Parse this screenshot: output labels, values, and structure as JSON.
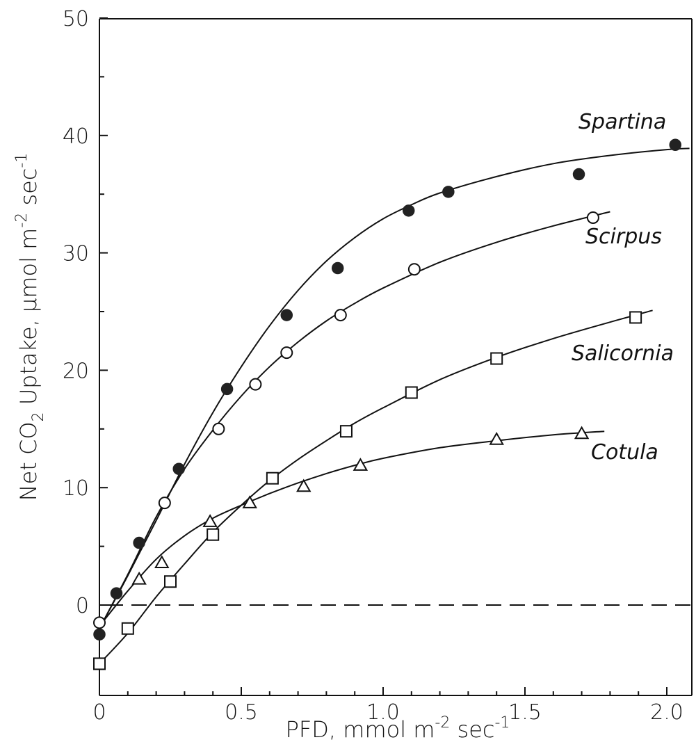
{
  "chart_data": {
    "type": "scatter",
    "xlabel": "PFD, mmol m",
    "xlabel_sup1": "-2",
    "xlabel_mid": " sec",
    "xlabel_sup2": "-1",
    "ylabel": "Net CO",
    "ylabel_sub": "2",
    "ylabel_mid": " Uptake, μmol m",
    "ylabel_sup1": "-2",
    "ylabel_mid2": " sec",
    "ylabel_sup2": "-1",
    "xlim": [
      0,
      2.1
    ],
    "ylim": [
      -7,
      50
    ],
    "x_ticks": [
      0,
      0.5,
      1.0,
      1.5,
      2.0
    ],
    "x_tick_labels": [
      "0",
      "0.5",
      "1.0",
      "1.5",
      "2.0"
    ],
    "y_ticks": [
      0,
      10,
      20,
      30,
      40,
      50
    ],
    "y_tick_labels": [
      "0",
      "10",
      "20",
      "30",
      "40",
      "50"
    ],
    "reference_line": {
      "y": 0,
      "style": "dashed"
    },
    "series": [
      {
        "name": "Spartina",
        "marker": "filled-circle",
        "points": [
          [
            0.0,
            -2.5
          ],
          [
            0.06,
            1.0
          ],
          [
            0.14,
            5.3
          ],
          [
            0.28,
            11.6
          ],
          [
            0.45,
            18.4
          ],
          [
            0.66,
            24.7
          ],
          [
            0.84,
            28.7
          ],
          [
            1.09,
            33.6
          ],
          [
            1.23,
            35.2
          ],
          [
            1.69,
            36.7
          ],
          [
            2.03,
            39.2
          ]
        ],
        "curve": [
          [
            0.0,
            -2.0
          ],
          [
            0.1,
            2.5
          ],
          [
            0.2,
            7.2
          ],
          [
            0.3,
            12.0
          ],
          [
            0.4,
            16.4
          ],
          [
            0.5,
            20.3
          ],
          [
            0.6,
            23.8
          ],
          [
            0.7,
            26.8
          ],
          [
            0.8,
            29.3
          ],
          [
            0.9,
            31.3
          ],
          [
            1.0,
            32.9
          ],
          [
            1.1,
            34.1
          ],
          [
            1.2,
            35.1
          ],
          [
            1.4,
            36.5
          ],
          [
            1.6,
            37.6
          ],
          [
            1.8,
            38.3
          ],
          [
            2.0,
            38.8
          ],
          [
            2.08,
            38.9
          ]
        ]
      },
      {
        "name": "Scirpus",
        "marker": "open-circle",
        "points": [
          [
            0.0,
            -1.5
          ],
          [
            0.23,
            8.7
          ],
          [
            0.42,
            15.0
          ],
          [
            0.55,
            18.8
          ],
          [
            0.66,
            21.5
          ],
          [
            0.85,
            24.7
          ],
          [
            1.11,
            28.6
          ],
          [
            1.74,
            33.0
          ]
        ],
        "curve": [
          [
            0.0,
            -2.0
          ],
          [
            0.1,
            2.6
          ],
          [
            0.2,
            7.5
          ],
          [
            0.3,
            11.6
          ],
          [
            0.4,
            14.9
          ],
          [
            0.5,
            17.8
          ],
          [
            0.6,
            20.3
          ],
          [
            0.7,
            22.4
          ],
          [
            0.8,
            24.2
          ],
          [
            0.9,
            25.7
          ],
          [
            1.0,
            27.0
          ],
          [
            1.2,
            29.2
          ],
          [
            1.4,
            30.9
          ],
          [
            1.6,
            32.3
          ],
          [
            1.8,
            33.5
          ]
        ]
      },
      {
        "name": "Salicornia",
        "marker": "open-square",
        "points": [
          [
            0.0,
            -5.0
          ],
          [
            0.1,
            -2.0
          ],
          [
            0.25,
            2.0
          ],
          [
            0.4,
            6.0
          ],
          [
            0.61,
            10.8
          ],
          [
            0.87,
            14.8
          ],
          [
            1.1,
            18.1
          ],
          [
            1.4,
            21.0
          ],
          [
            1.89,
            24.5
          ]
        ],
        "curve": [
          [
            0.0,
            -5.0
          ],
          [
            0.1,
            -2.4
          ],
          [
            0.2,
            0.7
          ],
          [
            0.3,
            3.5
          ],
          [
            0.4,
            6.2
          ],
          [
            0.5,
            8.5
          ],
          [
            0.6,
            10.6
          ],
          [
            0.7,
            12.4
          ],
          [
            0.8,
            14.0
          ],
          [
            0.9,
            15.5
          ],
          [
            1.0,
            16.8
          ],
          [
            1.2,
            19.2
          ],
          [
            1.4,
            21.1
          ],
          [
            1.6,
            22.7
          ],
          [
            1.8,
            24.1
          ],
          [
            1.95,
            25.1
          ]
        ]
      },
      {
        "name": "Cotula",
        "marker": "open-triangle",
        "points": [
          [
            0.14,
            2.2
          ],
          [
            0.22,
            3.6
          ],
          [
            0.39,
            7.1
          ],
          [
            0.53,
            8.7
          ],
          [
            0.72,
            10.1
          ],
          [
            0.92,
            11.9
          ],
          [
            1.4,
            14.1
          ],
          [
            1.7,
            14.6
          ]
        ],
        "curve": [
          [
            0.0,
            -1.8
          ],
          [
            0.1,
            1.2
          ],
          [
            0.2,
            3.9
          ],
          [
            0.3,
            5.9
          ],
          [
            0.4,
            7.4
          ],
          [
            0.5,
            8.5
          ],
          [
            0.6,
            9.5
          ],
          [
            0.7,
            10.4
          ],
          [
            0.8,
            11.2
          ],
          [
            0.9,
            11.9
          ],
          [
            1.0,
            12.5
          ],
          [
            1.2,
            13.4
          ],
          [
            1.4,
            14.0
          ],
          [
            1.6,
            14.5
          ],
          [
            1.78,
            14.8
          ]
        ]
      }
    ]
  }
}
